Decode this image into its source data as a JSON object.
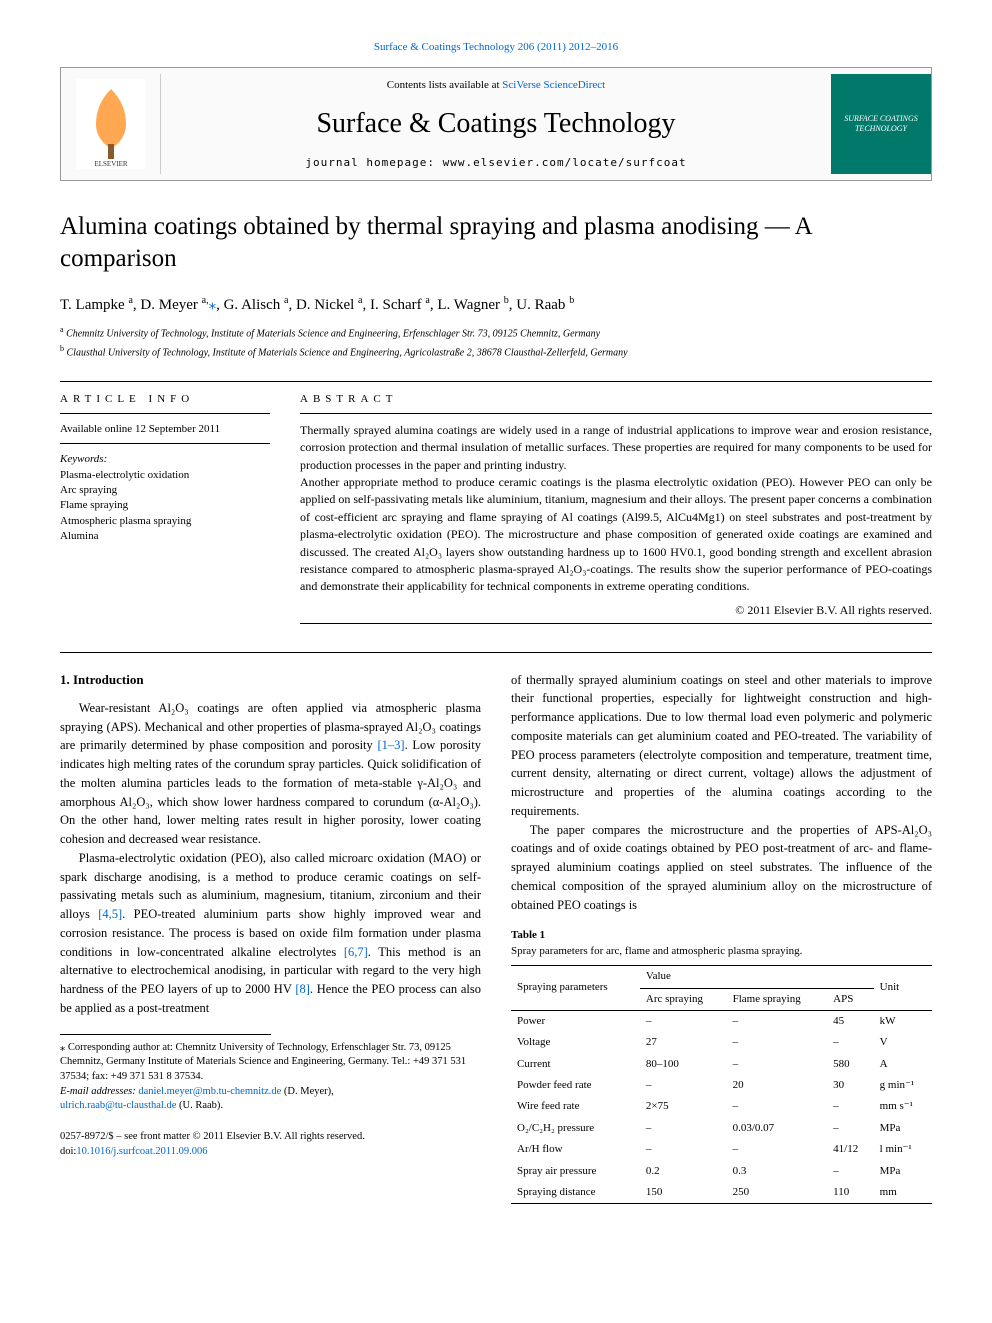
{
  "topReference": "Surface & Coatings Technology 206 (2011) 2012–2016",
  "header": {
    "contentsPrefix": "Contents lists available at ",
    "contentsLink": "SciVerse ScienceDirect",
    "journalTitle": "Surface & Coatings Technology",
    "homepagePrefix": "journal homepage: ",
    "homepageUrl": "www.elsevier.com/locate/surfcoat",
    "publisherLogoAlt": "Elsevier",
    "coverLogoText": "SURFACE COATINGS TECHNOLOGY"
  },
  "title": "Alumina coatings obtained by thermal spraying and plasma anodising — A comparison",
  "authors": [
    {
      "name": "T. Lampke",
      "affMark": "a"
    },
    {
      "name": "D. Meyer",
      "affMark": "a,",
      "corresponding": true
    },
    {
      "name": "G. Alisch",
      "affMark": "a"
    },
    {
      "name": "D. Nickel",
      "affMark": "a"
    },
    {
      "name": "I. Scharf",
      "affMark": "a"
    },
    {
      "name": "L. Wagner",
      "affMark": "b"
    },
    {
      "name": "U. Raab",
      "affMark": "b"
    }
  ],
  "affiliations": [
    {
      "mark": "a",
      "text": "Chemnitz University of Technology, Institute of Materials Science and Engineering, Erfenschlager Str. 73, 09125 Chemnitz, Germany"
    },
    {
      "mark": "b",
      "text": "Clausthal University of Technology, Institute of Materials Science and Engineering, Agricolastraße 2, 38678 Clausthal-Zellerfeld, Germany"
    }
  ],
  "articleInfo": {
    "header": "ARTICLE INFO",
    "available": "Available online 12 September 2011",
    "keywordsLabel": "Keywords:",
    "keywords": [
      "Plasma-electrolytic oxidation",
      "Arc spraying",
      "Flame spraying",
      "Atmospheric plasma spraying",
      "Alumina"
    ]
  },
  "abstract": {
    "header": "ABSTRACT",
    "paragraphs": [
      "Thermally sprayed alumina coatings are widely used in a range of industrial applications to improve wear and erosion resistance, corrosion protection and thermal insulation of metallic surfaces. These properties are required for many components to be used for production processes in the paper and printing industry.",
      "Another appropriate method to produce ceramic coatings is the plasma electrolytic oxidation (PEO). However PEO can only be applied on self-passivating metals like aluminium, titanium, magnesium and their alloys. The present paper concerns a combination of cost-efficient arc spraying and flame spraying of Al coatings (Al99.5, AlCu4Mg1) on steel substrates and post-treatment by plasma-electrolytic oxidation (PEO). The microstructure and phase composition of generated oxide coatings are examined and discussed. The created Al₂O₃ layers show outstanding hardness up to 1600 HV0.1, good bonding strength and excellent abrasion resistance compared to atmospheric plasma-sprayed Al₂O₃-coatings. The results show the superior performance of PEO-coatings and demonstrate their applicability for technical components in extreme operating conditions."
    ],
    "copyright": "© 2011 Elsevier B.V. All rights reserved."
  },
  "introduction": {
    "heading": "1. Introduction",
    "paragraphs": [
      "Wear-resistant Al₂O₃ coatings are often applied via atmospheric plasma spraying (APS). Mechanical and other properties of plasma-sprayed Al₂O₃ coatings are primarily determined by phase composition and porosity [1–3]. Low porosity indicates high melting rates of the corundum spray particles. Quick solidification of the molten alumina particles leads to the formation of meta-stable γ-Al₂O₃ and amorphous Al₂O₃, which show lower hardness compared to corundum (α-Al₂O₃). On the other hand, lower melting rates result in higher porosity, lower coating cohesion and decreased wear resistance.",
      "Plasma-electrolytic oxidation (PEO), also called microarc oxidation (MAO) or spark discharge anodising, is a method to produce ceramic coatings on self-passivating metals such as aluminium, magnesium, titanium, zirconium and their alloys [4,5]. PEO-treated aluminium parts show highly improved wear and corrosion resistance. The process is based on oxide film formation under plasma conditions in low-concentrated alkaline electrolytes [6,7]. This method is an alternative to electrochemical anodising, in particular with regard to the very high hardness of the PEO layers of up to 2000 HV [8]. Hence the PEO process can also be applied as a post-treatment",
      "of thermally sprayed aluminium coatings on steel and other materials to improve their functional properties, especially for lightweight construction and high-performance applications. Due to low thermal load even polymeric and polymeric composite materials can get aluminium coated and PEO-treated. The variability of PEO process parameters (electrolyte composition and temperature, treatment time, current density, alternating or direct current, voltage) allows the adjustment of microstructure and properties of the alumina coatings according to the requirements.",
      "The paper compares the microstructure and the properties of APS-Al₂O₃ coatings and of oxide coatings obtained by PEO post-treatment of arc- and flame-sprayed aluminium coatings applied on steel substrates. The influence of the chemical composition of the sprayed aluminium alloy on the microstructure of obtained PEO coatings is"
    ],
    "refs": {
      "r1": "[1–3]",
      "r2": "[4,5]",
      "r3": "[6,7]",
      "r4": "[8]"
    }
  },
  "correspondence": {
    "starMark": "⁎",
    "text": "Corresponding author at: Chemnitz University of Technology, Erfenschlager Str. 73, 09125 Chemnitz, Germany Institute of Materials Science and Engineering, Germany. Tel.: +49 371 531 37534; fax: +49 371 531 8 37534.",
    "emailLabel": "E-mail addresses: ",
    "emails": [
      {
        "addr": "daniel.meyer@mb.tu-chemnitz.de",
        "who": "(D. Meyer),"
      },
      {
        "addr": "ulrich.raab@tu-clausthal.de",
        "who": "(U. Raab)."
      }
    ]
  },
  "table1": {
    "labelBold": "Table 1",
    "caption": "Spray parameters for arc, flame and atmospheric plasma spraying.",
    "head": {
      "c1": "Spraying parameters",
      "c2": "Value",
      "c3": "Unit",
      "sub": [
        "Arc spraying",
        "Flame spraying",
        "APS"
      ]
    },
    "rows": [
      {
        "p": "Power",
        "v": [
          "–",
          "–",
          "45"
        ],
        "u": "kW"
      },
      {
        "p": "Voltage",
        "v": [
          "27",
          "–",
          "–"
        ],
        "u": "V"
      },
      {
        "p": "Current",
        "v": [
          "80–100",
          "–",
          "580"
        ],
        "u": "A"
      },
      {
        "p": "Powder feed rate",
        "v": [
          "–",
          "20",
          "30"
        ],
        "u": "g min⁻¹"
      },
      {
        "p": "Wire feed rate",
        "v": [
          "2×75",
          "–",
          "–"
        ],
        "u": "mm s⁻¹"
      },
      {
        "p": "O₂/C₂H₂ pressure",
        "v": [
          "–",
          "0.03/0.07",
          "–"
        ],
        "u": "MPa"
      },
      {
        "p": "Ar/H flow",
        "v": [
          "–",
          "–",
          "41/12"
        ],
        "u": "l min⁻¹"
      },
      {
        "p": "Spray air pressure",
        "v": [
          "0.2",
          "0.3",
          "–"
        ],
        "u": "MPa"
      },
      {
        "p": "Spraying distance",
        "v": [
          "150",
          "250",
          "110"
        ],
        "u": "mm"
      }
    ]
  },
  "doiBlock": {
    "line1": "0257-8972/$ – see front matter © 2011 Elsevier B.V. All rights reserved.",
    "doiPrefix": "doi:",
    "doi": "10.1016/j.surfcoat.2011.09.006"
  },
  "colors": {
    "link": "#0066cc",
    "coverBg": "#00796b",
    "rule": "#000000",
    "headerBg": "#fafafa"
  }
}
